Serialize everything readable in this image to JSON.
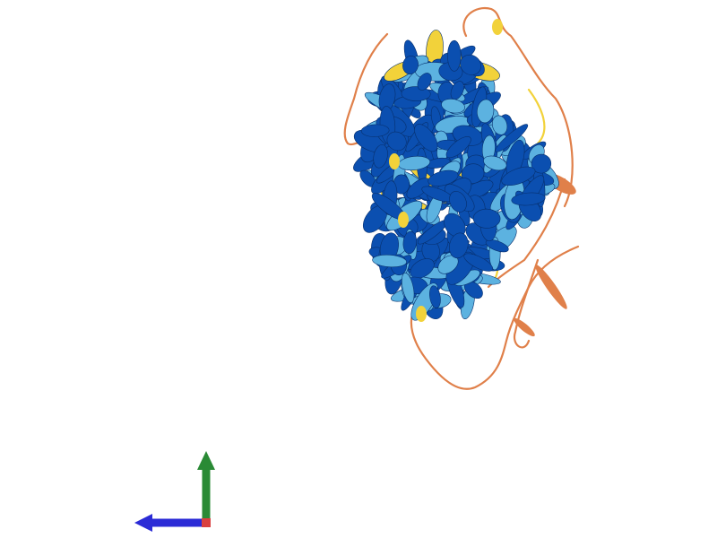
{
  "viewer": {
    "background": "#ffffff",
    "colors": {
      "very_high_confidence": "#0b4fb0",
      "confident": "#5cb2e0",
      "low_confidence": "#f2d23a",
      "very_low_confidence": "#e0804a"
    },
    "axes": {
      "x_color": "#2b2bd6",
      "y_color": "#2a8a35",
      "z_color": "#d94040"
    }
  }
}
